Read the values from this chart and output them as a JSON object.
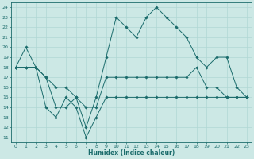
{
  "xlabel": "Humidex (Indice chaleur)",
  "x": [
    0,
    1,
    2,
    3,
    4,
    5,
    6,
    7,
    8,
    9,
    10,
    11,
    12,
    13,
    14,
    15,
    16,
    17,
    18,
    19,
    20,
    21,
    22,
    23
  ],
  "line_max": [
    18,
    20,
    18,
    17,
    16,
    16,
    15,
    12,
    15,
    19,
    23,
    22,
    21,
    23,
    24,
    23,
    22,
    21,
    19,
    18,
    19,
    19,
    16,
    15
  ],
  "line_mean": [
    18,
    18,
    18,
    17,
    14,
    14,
    15,
    14,
    14,
    17,
    17,
    17,
    17,
    17,
    17,
    17,
    17,
    17,
    18,
    16,
    16,
    15,
    15,
    15
  ],
  "line_min": [
    18,
    18,
    18,
    14,
    13,
    15,
    14,
    11,
    13,
    15,
    15,
    15,
    15,
    15,
    15,
    15,
    15,
    15,
    15,
    15,
    15,
    15,
    15,
    15
  ],
  "ylim_min": 10.5,
  "ylim_max": 24.5,
  "xlim_min": -0.5,
  "xlim_max": 23.5,
  "yticks": [
    11,
    12,
    13,
    14,
    15,
    16,
    17,
    18,
    19,
    20,
    21,
    22,
    23,
    24
  ],
  "xticks": [
    0,
    1,
    2,
    3,
    4,
    5,
    6,
    7,
    8,
    9,
    10,
    11,
    12,
    13,
    14,
    15,
    16,
    17,
    18,
    19,
    20,
    21,
    22,
    23
  ],
  "line_color": "#1a6b6b",
  "bg_color": "#cce8e5",
  "grid_color": "#b0d8d4",
  "marker_size": 1.8,
  "linewidth": 0.7,
  "tick_fontsize": 4.5,
  "xlabel_fontsize": 5.5
}
